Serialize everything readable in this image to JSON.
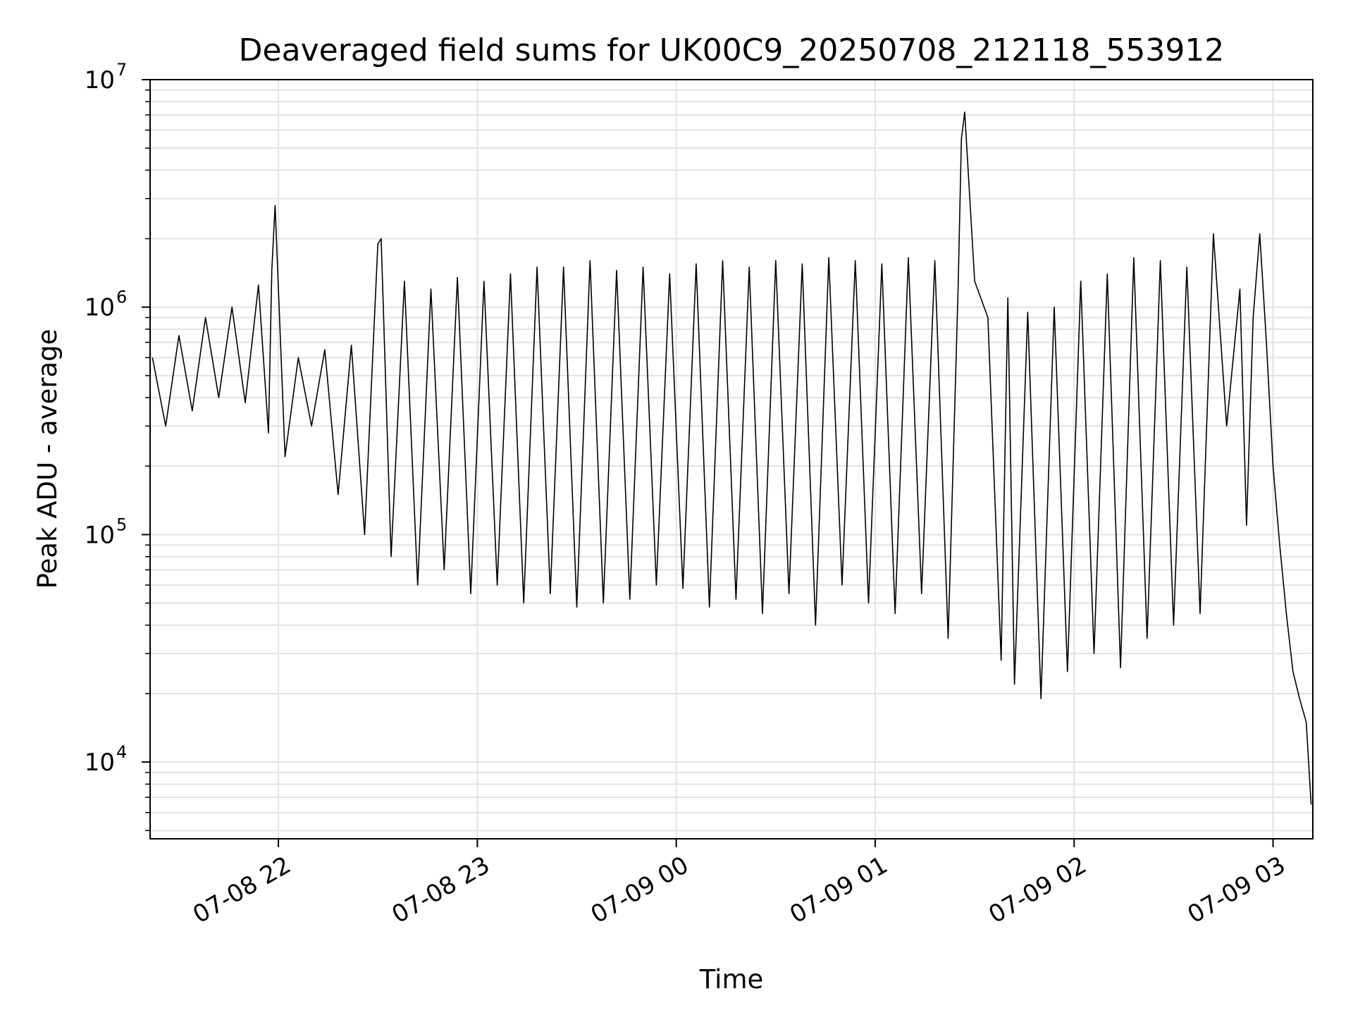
{
  "chart_data": {
    "type": "line",
    "title": "Deaveraged field sums for UK00C9_20250708_212118_553912",
    "xlabel": "Time",
    "ylabel": "Peak ADU - average",
    "yscale": "log",
    "ylim": [
      4600,
      10000000
    ],
    "xlim": [
      "2025-07-08T21:21:18",
      "2025-07-09T03:12:00"
    ],
    "grid": true,
    "line_color": "#000000",
    "x_ticks": [
      "2025-07-08T22:00",
      "2025-07-08T23:00",
      "2025-07-09T00:00",
      "2025-07-09T01:00",
      "2025-07-09T02:00",
      "2025-07-09T03:00"
    ],
    "x_tick_labels": [
      "07-08 22",
      "07-08 23",
      "07-09 00",
      "07-09 01",
      "07-09 02",
      "07-09 03"
    ],
    "y_ticks": [
      10000,
      100000,
      1000000,
      10000000
    ],
    "y_tick_labels": [
      {
        "base": "10",
        "exp": "4"
      },
      {
        "base": "10",
        "exp": "5"
      },
      {
        "base": "10",
        "exp": "6"
      },
      {
        "base": "10",
        "exp": "7"
      }
    ],
    "series": [
      {
        "x": [
          "2025-07-08T21:22:00",
          "2025-07-08T21:26:00",
          "2025-07-08T21:30:00",
          "2025-07-08T21:34:00",
          "2025-07-08T21:38:00",
          "2025-07-08T21:42:00",
          "2025-07-08T21:46:00",
          "2025-07-08T21:50:00",
          "2025-07-08T21:54:00",
          "2025-07-08T21:57:00",
          "2025-07-08T21:58:00",
          "2025-07-08T21:59:00",
          "2025-07-08T22:02:00",
          "2025-07-08T22:06:00",
          "2025-07-08T22:10:00",
          "2025-07-08T22:14:00",
          "2025-07-08T22:18:00",
          "2025-07-08T22:22:00",
          "2025-07-08T22:26:00",
          "2025-07-08T22:30:00",
          "2025-07-08T22:31:00",
          "2025-07-08T22:34:00",
          "2025-07-08T22:38:00",
          "2025-07-08T22:42:00",
          "2025-07-08T22:46:00",
          "2025-07-08T22:50:00",
          "2025-07-08T22:54:00",
          "2025-07-08T22:58:00",
          "2025-07-08T23:02:00",
          "2025-07-08T23:06:00",
          "2025-07-08T23:10:00",
          "2025-07-08T23:14:00",
          "2025-07-08T23:18:00",
          "2025-07-08T23:22:00",
          "2025-07-08T23:26:00",
          "2025-07-08T23:30:00",
          "2025-07-08T23:34:00",
          "2025-07-08T23:38:00",
          "2025-07-08T23:42:00",
          "2025-07-08T23:46:00",
          "2025-07-08T23:50:00",
          "2025-07-08T23:54:00",
          "2025-07-08T23:58:00",
          "2025-07-09T00:02:00",
          "2025-07-09T00:06:00",
          "2025-07-09T00:10:00",
          "2025-07-09T00:14:00",
          "2025-07-09T00:18:00",
          "2025-07-09T00:22:00",
          "2025-07-09T00:26:00",
          "2025-07-09T00:30:00",
          "2025-07-09T00:34:00",
          "2025-07-09T00:38:00",
          "2025-07-09T00:42:00",
          "2025-07-09T00:46:00",
          "2025-07-09T00:50:00",
          "2025-07-09T00:54:00",
          "2025-07-09T00:58:00",
          "2025-07-09T01:02:00",
          "2025-07-09T01:06:00",
          "2025-07-09T01:10:00",
          "2025-07-09T01:14:00",
          "2025-07-09T01:18:00",
          "2025-07-09T01:22:00",
          "2025-07-09T01:25:00",
          "2025-07-09T01:26:00",
          "2025-07-09T01:27:00",
          "2025-07-09T01:30:00",
          "2025-07-09T01:34:00",
          "2025-07-09T01:38:00",
          "2025-07-09T01:40:00",
          "2025-07-09T01:42:00",
          "2025-07-09T01:46:00",
          "2025-07-09T01:50:00",
          "2025-07-09T01:54:00",
          "2025-07-09T01:58:00",
          "2025-07-09T02:02:00",
          "2025-07-09T02:06:00",
          "2025-07-09T02:10:00",
          "2025-07-09T02:14:00",
          "2025-07-09T02:18:00",
          "2025-07-09T02:22:00",
          "2025-07-09T02:26:00",
          "2025-07-09T02:30:00",
          "2025-07-09T02:34:00",
          "2025-07-09T02:38:00",
          "2025-07-09T02:42:00",
          "2025-07-09T02:46:00",
          "2025-07-09T02:50:00",
          "2025-07-09T02:52:00",
          "2025-07-09T02:54:00",
          "2025-07-09T02:56:00",
          "2025-07-09T02:58:00",
          "2025-07-09T03:00:00",
          "2025-07-09T03:02:00",
          "2025-07-09T03:04:00",
          "2025-07-09T03:06:00",
          "2025-07-09T03:08:00",
          "2025-07-09T03:10:00",
          "2025-07-09T03:11:30"
        ],
        "y": [
          600000,
          300000,
          750000,
          350000,
          900000,
          400000,
          1000000,
          380000,
          1250000,
          280000,
          1450000,
          2800000,
          220000,
          600000,
          300000,
          650000,
          150000,
          680000,
          100000,
          1900000,
          2000000,
          80000,
          1300000,
          60000,
          1200000,
          70000,
          1350000,
          55000,
          1300000,
          60000,
          1400000,
          50000,
          1500000,
          55000,
          1500000,
          48000,
          1600000,
          50000,
          1450000,
          52000,
          1500000,
          60000,
          1400000,
          58000,
          1550000,
          48000,
          1600000,
          52000,
          1500000,
          45000,
          1600000,
          55000,
          1550000,
          40000,
          1650000,
          60000,
          1600000,
          50000,
          1550000,
          45000,
          1650000,
          55000,
          1600000,
          35000,
          1200000,
          5500000,
          7200000,
          1300000,
          900000,
          28000,
          1100000,
          22000,
          950000,
          19000,
          1000000,
          25000,
          1300000,
          30000,
          1400000,
          26000,
          1650000,
          35000,
          1600000,
          40000,
          1500000,
          45000,
          2100000,
          300000,
          1200000,
          110000,
          900000,
          2100000,
          700000,
          200000,
          90000,
          45000,
          25000,
          19000,
          15000,
          6500
        ]
      }
    ]
  }
}
